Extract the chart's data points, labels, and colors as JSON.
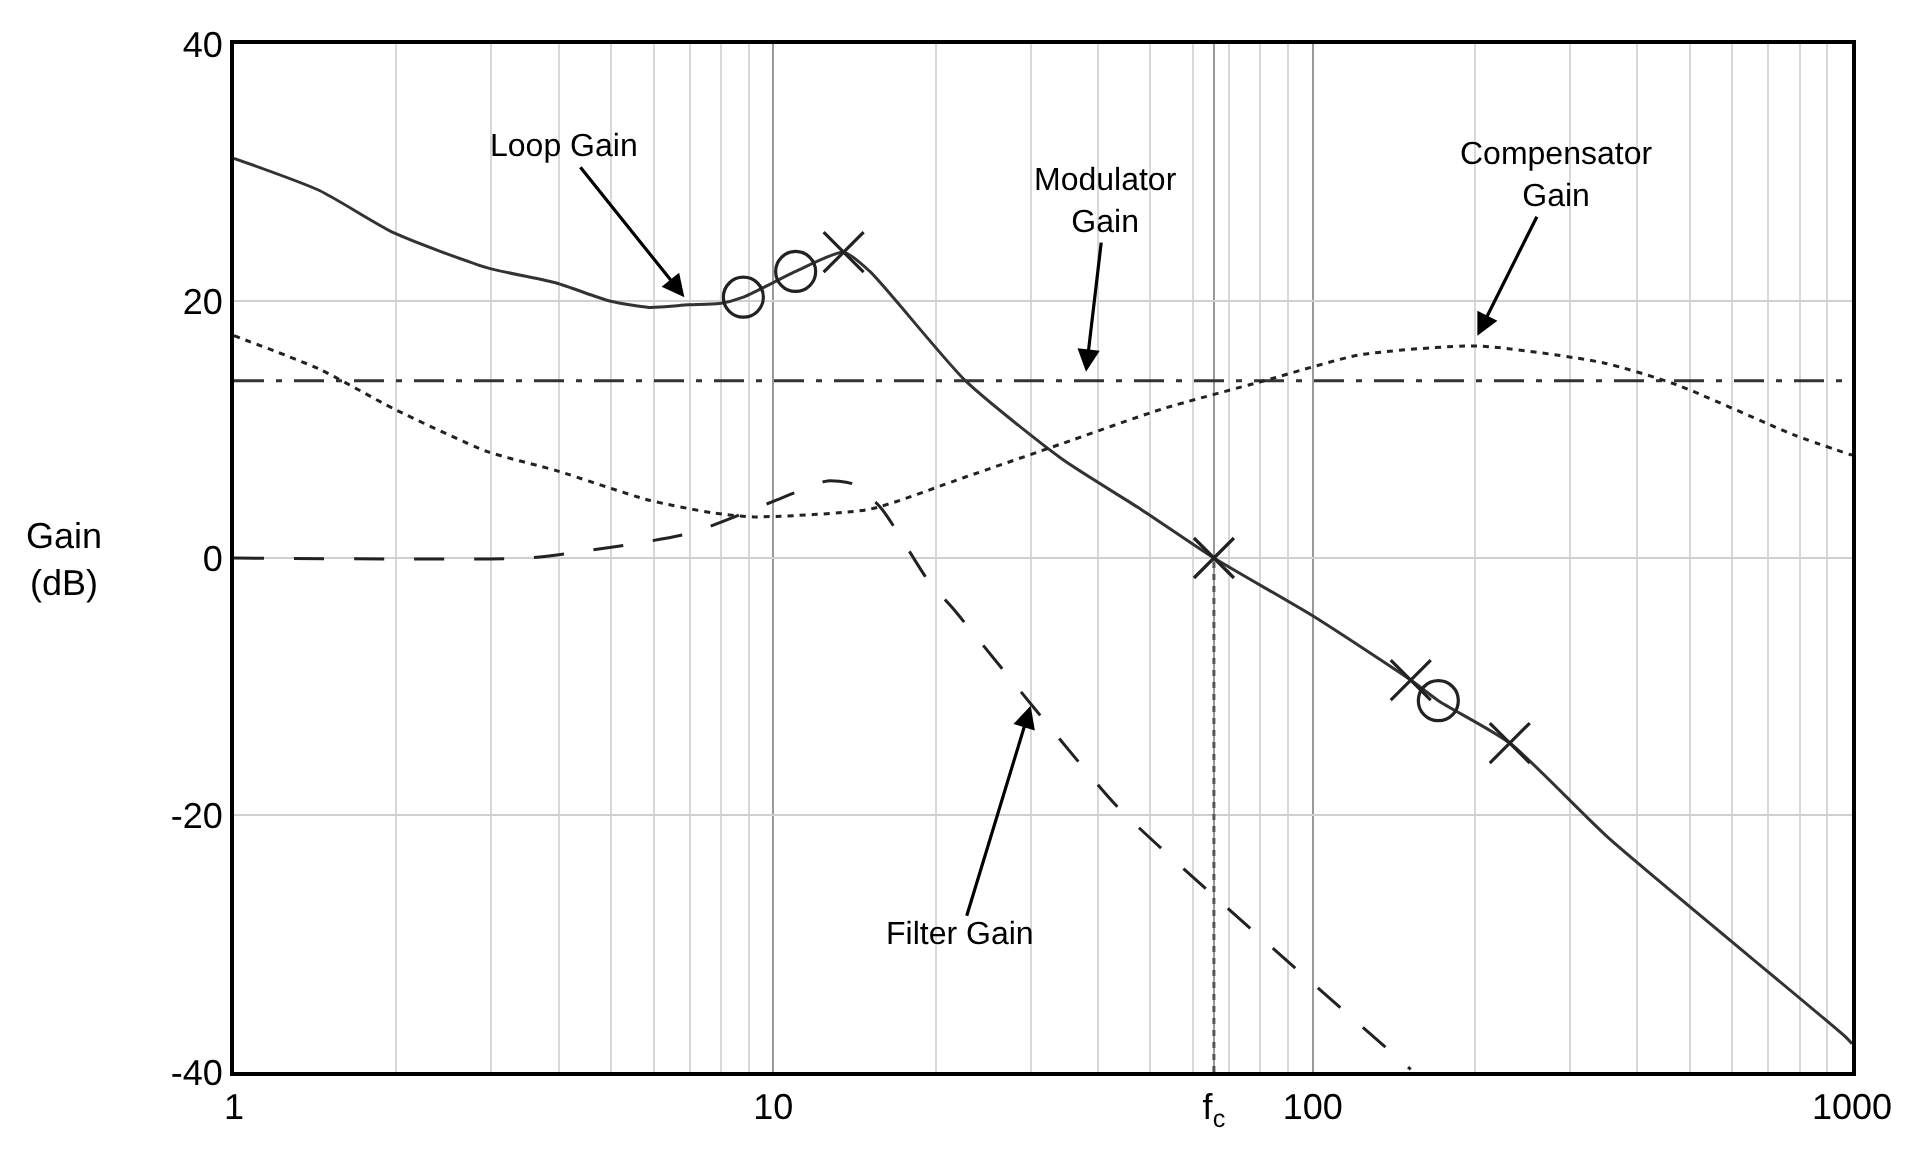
{
  "chart_data": {
    "type": "line",
    "ylabel": "Gain\n(dB)",
    "log": "x",
    "xlim": [
      1,
      1000
    ],
    "xticks": [
      1,
      10,
      {
        "value": 65.6,
        "label": "f$_{c}$"
      },
      100,
      1000
    ],
    "ylim": [
      -40,
      40
    ],
    "yticks": [
      -40,
      -20,
      0,
      20,
      40
    ],
    "grid": true,
    "series": [
      {
        "color": "#333333",
        "line_style": "solid",
        "x": [
          1,
          1.44,
          1.98,
          2.94,
          3.96,
          4.97,
          5.88,
          6.96,
          7.95,
          8.8,
          11.0,
          13.5,
          15.1,
          22.7,
          34.3,
          48.0,
          65.6,
          100,
          152,
          171,
          232,
          354,
          975,
          1000
        ],
        "values": [
          31.1,
          28.6,
          25.3,
          22.6,
          21.4,
          20.0,
          19.5,
          19.7,
          19.8,
          20.3,
          22.3,
          23.8,
          22.3,
          13.8,
          7.7,
          3.8,
          0,
          -4.5,
          -9.5,
          -11.1,
          -14.4,
          -21.8,
          -37.3,
          -37.8
        ]
      },
      {
        "color": "#333333",
        "line_style": "dashdot",
        "x": [
          1,
          1000
        ],
        "values": [
          13.8,
          13.8
        ]
      },
      {
        "color": "#222222",
        "line_style": "dotted",
        "x": [
          1,
          1.44,
          1.98,
          2.94,
          3.96,
          5.88,
          7.75,
          9.2,
          15.1,
          22.7,
          34.3,
          52.6,
          81.5,
          122,
          202,
          345,
          472,
          778,
          1000
        ],
        "values": [
          17.3,
          14.7,
          11.6,
          8.3,
          6.8,
          4.5,
          3.5,
          3.2,
          3.8,
          6.3,
          8.9,
          11.6,
          13.8,
          15.8,
          16.5,
          15.2,
          13.5,
          9.6,
          8.0
        ]
      },
      {
        "color": "#222222",
        "line_style": "dashed",
        "x": [
          1,
          3.5,
          4.4,
          5.7,
          7.1,
          9.2,
          10.4,
          12.6,
          14.2,
          15.9,
          19.4,
          21.4,
          43.1,
          65.6,
          152
        ],
        "values": [
          0,
          0,
          0.5,
          1.2,
          2.0,
          3.8,
          4.7,
          6.0,
          5.7,
          3.8,
          -1.8,
          -3.8,
          -19.2,
          -26.3,
          -39.8
        ]
      },
      {
        "color": "#555555",
        "line_style": "dotted",
        "x": [
          65.6,
          65.6
        ],
        "values": [
          -40,
          0
        ]
      },
      {
        "type": "scatter",
        "color": "#222222",
        "marker": "circle",
        "x": [
          8.8,
          11.0,
          171
        ],
        "values": [
          20.3,
          22.3,
          -11.1
        ]
      },
      {
        "type": "scatter",
        "color": "#222222",
        "marker": "cross",
        "x": [
          13.5,
          152,
          232
        ],
        "values": [
          23.8,
          -9.5,
          -14.4
        ]
      },
      {
        "type": "scatter",
        "color": "#222222",
        "marker": "cross",
        "x": [
          65.6
        ],
        "values": [
          0
        ]
      }
    ],
    "annotations": [
      {
        "text": "Loop Gain",
        "x": 6.84,
        "y": 20.3
      },
      {
        "text": "Modulator\nGain",
        "x": 38,
        "y": 14.5
      },
      {
        "text": "Compensator\nGain",
        "x": 202,
        "y": 17.3
      },
      {
        "text": "Filter Gain",
        "x": 30,
        "y": -11.5
      }
    ]
  }
}
